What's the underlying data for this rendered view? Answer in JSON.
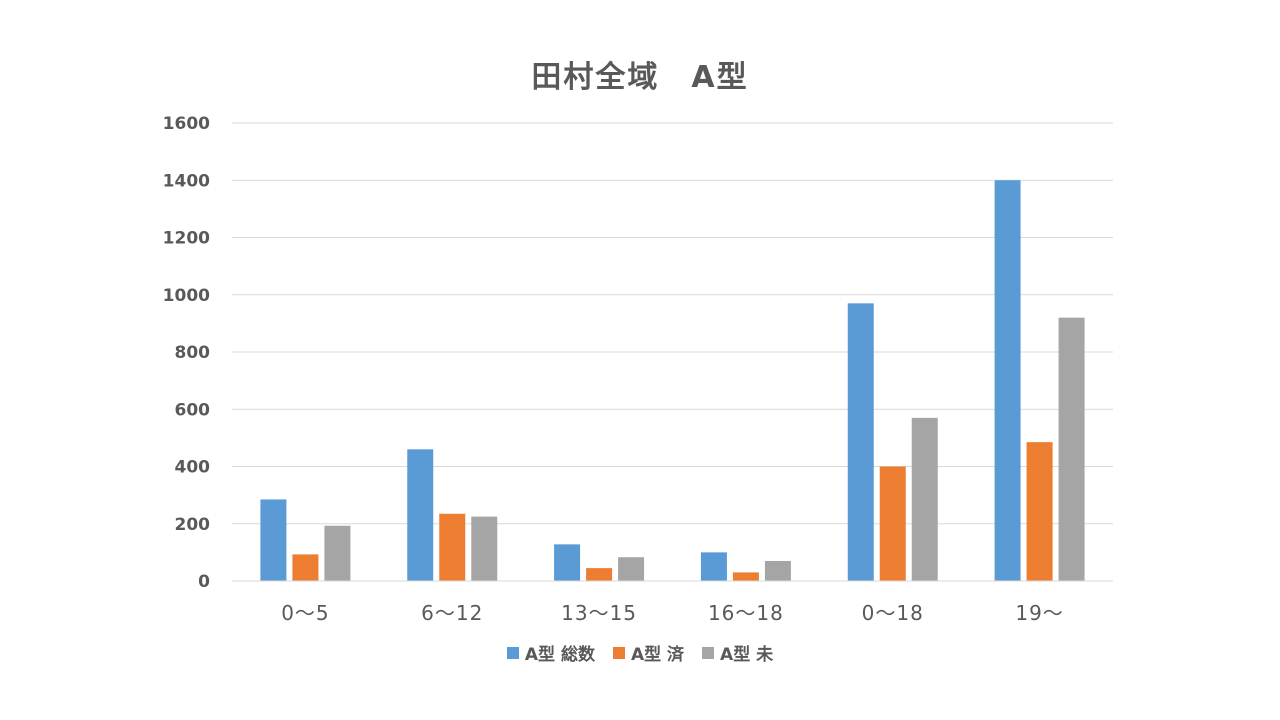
{
  "chart_data": {
    "type": "bar",
    "title": "田村全域　A型",
    "categories": [
      "0～5",
      "6～12",
      "13～15",
      "16～18",
      "0～18",
      "19～"
    ],
    "series": [
      {
        "name": "A型 総数",
        "color": "#5B9BD5",
        "values": [
          285,
          460,
          128,
          100,
          970,
          1400
        ]
      },
      {
        "name": "A型 済",
        "color": "#ED7D31",
        "values": [
          93,
          235,
          45,
          30,
          400,
          485
        ]
      },
      {
        "name": "A型 未",
        "color": "#A5A5A5",
        "values": [
          193,
          225,
          83,
          70,
          570,
          920
        ]
      }
    ],
    "ylim": [
      0,
      1600
    ],
    "yticks": [
      0,
      200,
      400,
      600,
      800,
      1000,
      1200,
      1400,
      1600
    ],
    "grid": true,
    "legend_position": "bottom"
  }
}
